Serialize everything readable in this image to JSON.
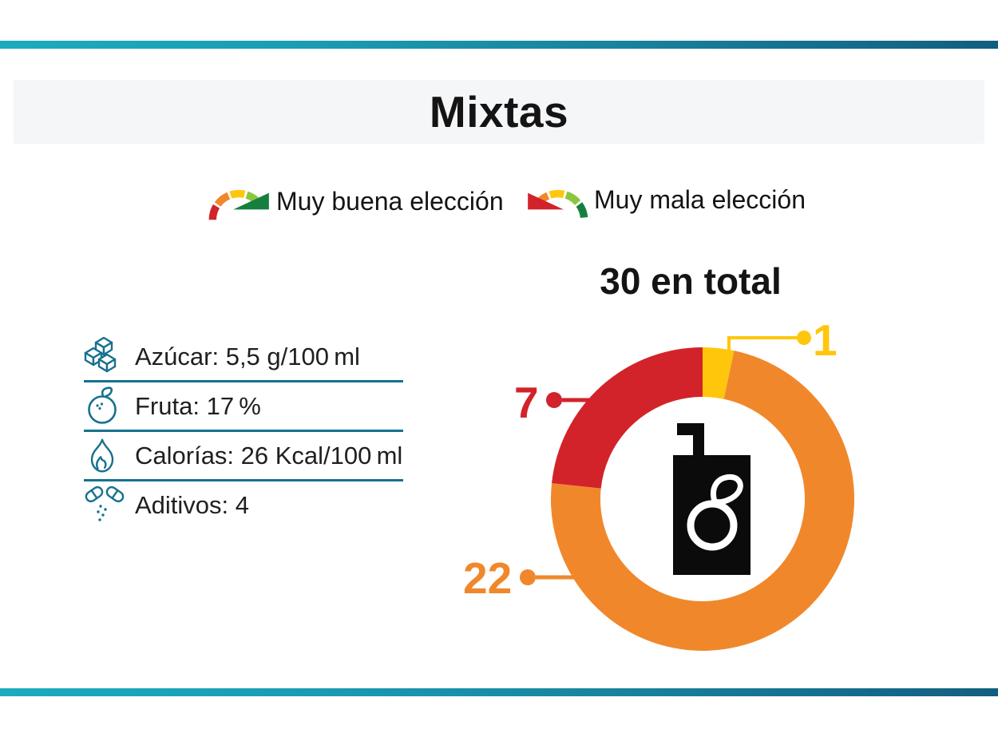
{
  "header": {
    "title": "Mixtas"
  },
  "legend": {
    "good_label": "Muy buena elección",
    "bad_label": "Muy mala elección"
  },
  "nutrition": [
    {
      "icon": "sugar-cubes-icon",
      "label": "Azúcar: 5,5 g/100 ml"
    },
    {
      "icon": "fruit-icon",
      "label": "Fruta: 17 %"
    },
    {
      "icon": "flame-icon",
      "label": "Calorías: 26 Kcal/100 ml"
    },
    {
      "icon": "pills-icon",
      "label": "Aditivos: 4"
    }
  ],
  "chart_data": {
    "type": "pie",
    "donut": true,
    "title": "30 en total",
    "total": 30,
    "start_angle_deg": 0,
    "direction": "clockwise",
    "segments": [
      {
        "name": "yellow",
        "value": 1,
        "color": "#FFC60B"
      },
      {
        "name": "orange",
        "value": 22,
        "color": "#F0882B"
      },
      {
        "name": "red",
        "value": 7,
        "color": "#D2232A"
      }
    ],
    "center_icon": "juice-box-icon",
    "legend_position": "outside-callouts"
  },
  "colors": {
    "teal": "#16718F",
    "bar_gradient_start": "#1BABBE",
    "bar_gradient_end": "#125E80",
    "title_band_bg": "#F4F6F8",
    "gauge_scale": {
      "red": "#D2232A",
      "orange": "#F0882B",
      "yellow": "#FFC60B",
      "light_green": "#8CC63E",
      "dark_green": "#15803D"
    }
  }
}
